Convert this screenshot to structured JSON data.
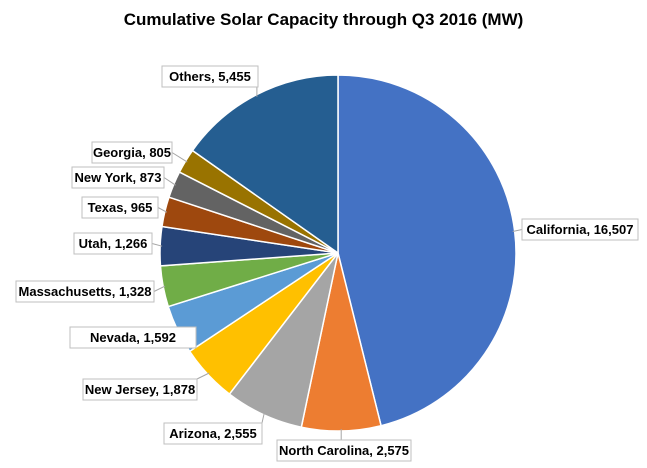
{
  "chart_data": {
    "type": "pie",
    "title": "Cumulative Solar Capacity through Q3 2016 (MW)",
    "slices": [
      {
        "name": "California",
        "label": "California, 16,507",
        "value": 16507,
        "color": "#4472c4"
      },
      {
        "name": "North Carolina",
        "label": "North Carolina, 2,575",
        "value": 2575,
        "color": "#ed7d31"
      },
      {
        "name": "Arizona",
        "label": "Arizona, 2,555",
        "value": 2555,
        "color": "#a5a5a5"
      },
      {
        "name": "New Jersey",
        "label": "New Jersey, 1,878",
        "value": 1878,
        "color": "#ffc000"
      },
      {
        "name": "Nevada",
        "label": "Nevada, 1,592",
        "value": 1592,
        "color": "#5b9bd5"
      },
      {
        "name": "Massachusetts",
        "label": "Massachusetts, 1,328",
        "value": 1328,
        "color": "#70ad47"
      },
      {
        "name": "Utah",
        "label": "Utah, 1,266",
        "value": 1266,
        "color": "#264478"
      },
      {
        "name": "Texas",
        "label": "Texas, 965",
        "value": 965,
        "color": "#9e480e"
      },
      {
        "name": "New York",
        "label": "New York, 873",
        "value": 873,
        "color": "#636363"
      },
      {
        "name": "Georgia",
        "label": "Georgia, 805",
        "value": 805,
        "color": "#997300"
      },
      {
        "name": "Others",
        "label": "Others, 5,455",
        "value": 5455,
        "color": "#255e91"
      }
    ]
  }
}
